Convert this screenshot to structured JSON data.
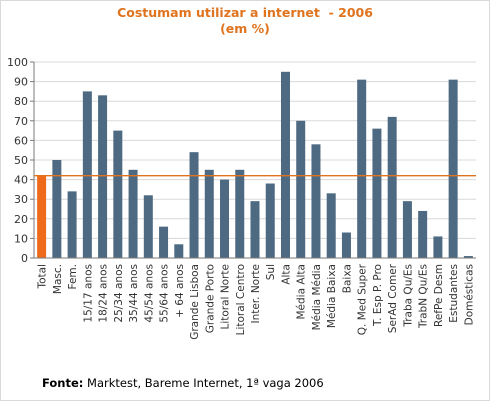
{
  "chart_data": {
    "type": "bar",
    "title_line1": "Costumam utilizar a internet  - 2006",
    "title_line2": "(em %)",
    "ylim": [
      0,
      100
    ],
    "yticks": [
      0,
      10,
      20,
      30,
      40,
      50,
      60,
      70,
      80,
      90,
      100
    ],
    "grid": true,
    "reference_line": 42,
    "categories": [
      "Total",
      "Masc.",
      "Fem.",
      "15/17 anos",
      "18/24 anos",
      "25/34 anos",
      "35/44 anos",
      "45/54 anos",
      "55/64 anos",
      "+ 64 anos",
      "Grande Lisboa",
      "Grande Porto",
      "Litoral Norte",
      "Litoral Centro",
      "Inter. Norte",
      "Sul",
      "Alta",
      "Média Alta",
      "Média Média",
      "Média Baixa",
      "Baixa",
      "Q. Med Super",
      "T. Esp P. Pro",
      "SerAd Comer",
      "Traba Qu/Es",
      "TrabN Qu/Es",
      "RefPe Desm",
      "Estudantes",
      "Domésticas"
    ],
    "values": [
      42,
      50,
      34,
      85,
      83,
      65,
      45,
      32,
      16,
      7,
      54,
      45,
      40,
      45,
      29,
      38,
      95,
      70,
      58,
      33,
      13,
      91,
      66,
      72,
      29,
      24,
      11,
      91,
      1
    ],
    "highlight_index": 0,
    "colors": {
      "bar": "#4e6a82",
      "highlight": "#ef6b1c",
      "reference": "#e0731e",
      "grid": "#d8d8d8",
      "axis": "#7a7a7a"
    }
  },
  "source": {
    "label": "Fonte:",
    "text": " Marktest, Bareme Internet, 1ª vaga 2006"
  }
}
